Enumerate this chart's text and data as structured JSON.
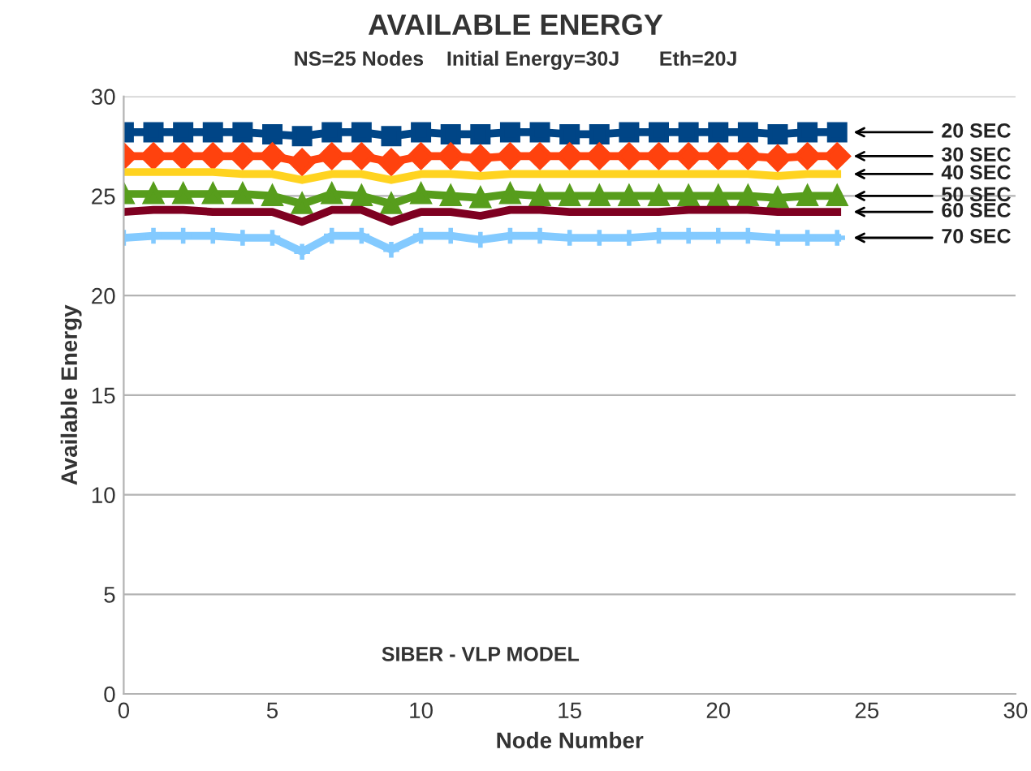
{
  "chart_data": {
    "type": "line",
    "title": "AVAILABLE ENERGY",
    "subtitle": "NS=25 Nodes    Initial Energy=30J       Eth=20J",
    "xlabel": "Node Number",
    "ylabel": "Available Energy",
    "x": [
      0,
      1,
      2,
      3,
      4,
      5,
      6,
      7,
      8,
      9,
      10,
      11,
      12,
      13,
      14,
      15,
      16,
      17,
      18,
      19,
      20,
      21,
      22,
      23,
      24
    ],
    "series": [
      {
        "name": "20 SEC",
        "color": "#004586",
        "marker": "square",
        "values": [
          28.2,
          28.2,
          28.2,
          28.2,
          28.2,
          28.1,
          28.0,
          28.2,
          28.2,
          28.0,
          28.2,
          28.1,
          28.1,
          28.2,
          28.2,
          28.1,
          28.1,
          28.2,
          28.2,
          28.2,
          28.2,
          28.2,
          28.1,
          28.2,
          28.2
        ]
      },
      {
        "name": "30 SEC",
        "color": "#ff420e",
        "marker": "diamond",
        "values": [
          27.0,
          27.0,
          27.0,
          27.0,
          27.0,
          27.0,
          26.7,
          27.0,
          27.0,
          26.7,
          27.0,
          27.0,
          26.9,
          27.0,
          27.0,
          27.0,
          27.0,
          27.0,
          27.0,
          27.0,
          27.0,
          27.0,
          26.9,
          27.0,
          27.0
        ]
      },
      {
        "name": "40 SEC",
        "color": "#ffd320",
        "marker": "none",
        "values": [
          26.2,
          26.2,
          26.2,
          26.2,
          26.1,
          26.1,
          25.8,
          26.1,
          26.1,
          25.8,
          26.1,
          26.1,
          26.0,
          26.1,
          26.1,
          26.1,
          26.1,
          26.1,
          26.1,
          26.1,
          26.1,
          26.1,
          26.0,
          26.1,
          26.1
        ]
      },
      {
        "name": "50 SEC",
        "color": "#579d1c",
        "marker": "triangle",
        "values": [
          25.1,
          25.1,
          25.1,
          25.1,
          25.1,
          25.0,
          24.6,
          25.1,
          25.0,
          24.6,
          25.1,
          25.0,
          24.9,
          25.1,
          25.0,
          25.0,
          25.0,
          25.0,
          25.0,
          25.0,
          25.0,
          25.0,
          24.9,
          25.0,
          25.0
        ]
      },
      {
        "name": "60 SEC",
        "color": "#7e0021",
        "marker": "none",
        "values": [
          24.2,
          24.3,
          24.3,
          24.2,
          24.2,
          24.2,
          23.7,
          24.3,
          24.3,
          23.7,
          24.2,
          24.2,
          24.0,
          24.3,
          24.3,
          24.2,
          24.2,
          24.2,
          24.2,
          24.3,
          24.3,
          24.3,
          24.2,
          24.2,
          24.2
        ]
      },
      {
        "name": "70 SEC",
        "color": "#83caff",
        "marker": "cross",
        "values": [
          22.9,
          23.0,
          23.0,
          23.0,
          22.9,
          22.9,
          22.2,
          23.0,
          23.0,
          22.3,
          23.0,
          23.0,
          22.8,
          23.0,
          23.0,
          22.9,
          22.9,
          22.9,
          23.0,
          23.0,
          23.0,
          23.0,
          22.9,
          22.9,
          22.9
        ]
      }
    ],
    "xlim": [
      0,
      30
    ],
    "xticks": [
      0,
      5,
      10,
      15,
      20,
      25,
      30
    ],
    "ylim": [
      0,
      30
    ],
    "yticks": [
      0,
      5,
      10,
      15,
      20,
      25,
      30
    ],
    "grid": "y",
    "legend": false,
    "line_style": "solid",
    "annotations": [
      "SIBER - VLP MODEL"
    ]
  }
}
